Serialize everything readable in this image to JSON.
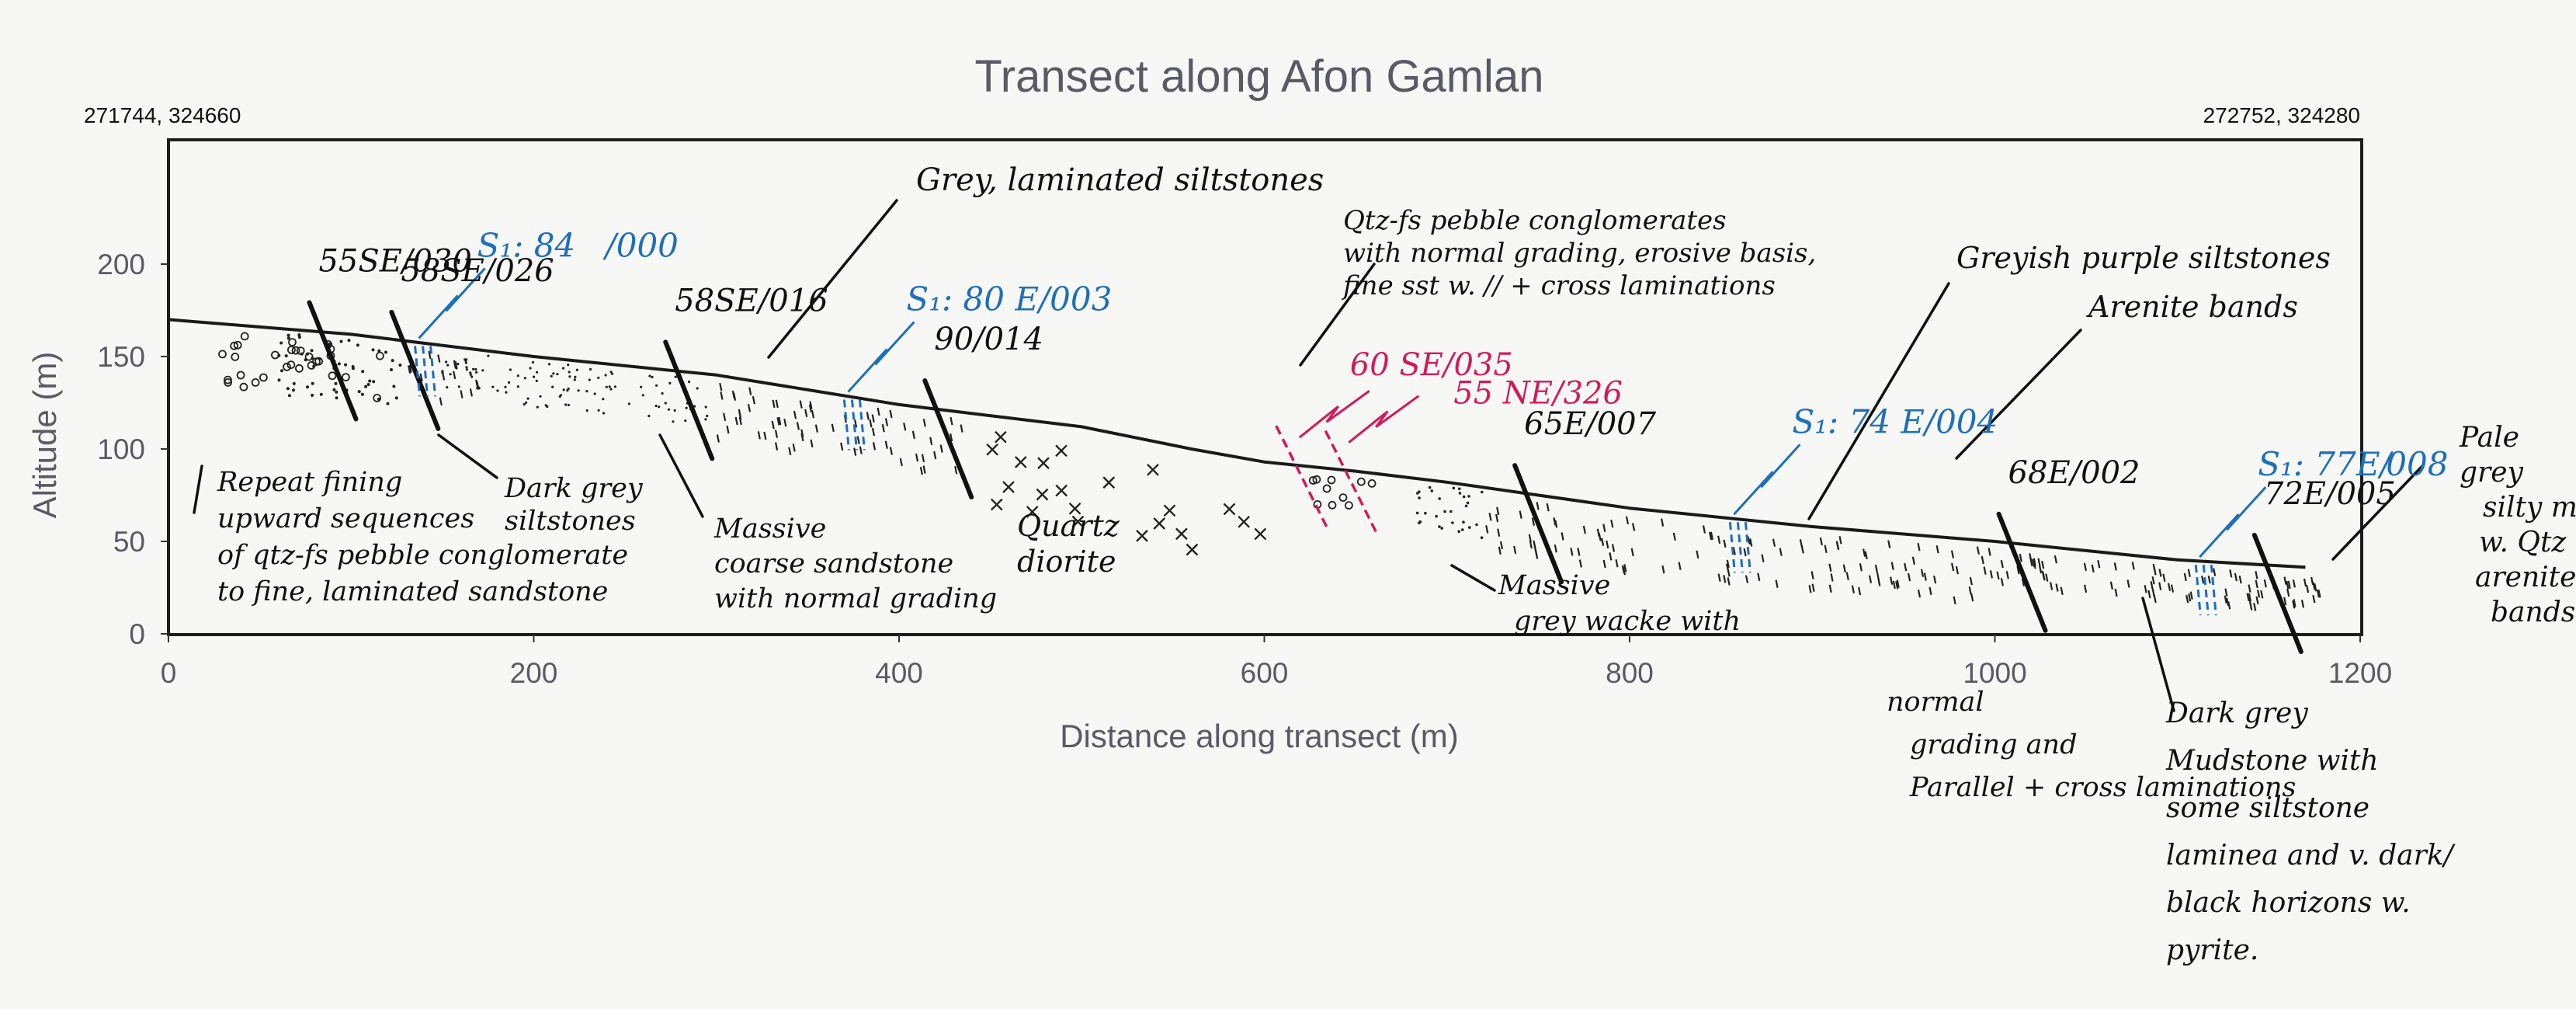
{
  "chart_data": {
    "type": "area",
    "title": "Transect along Afon Gamlan",
    "xlabel": "Distance along transect (m)",
    "ylabel": "Altitude (m)",
    "xlim": [
      0,
      1200
    ],
    "ylim": [
      0,
      270
    ],
    "xticks": [
      "0",
      "200",
      "400",
      "600",
      "800",
      "1000",
      "1200"
    ],
    "yticks": [
      "0",
      "50",
      "100",
      "150",
      "200"
    ],
    "grid": false,
    "corner_left": "271744, 324660",
    "corner_right": "272752, 324280",
    "profile": {
      "x": [
        0,
        100,
        200,
        300,
        400,
        500,
        560,
        600,
        650,
        700,
        800,
        900,
        1000,
        1100,
        1170
      ],
      "y": [
        170,
        162,
        150,
        140,
        124,
        112,
        100,
        93,
        88,
        82,
        68,
        58,
        50,
        40,
        36
      ]
    },
    "structures": [
      {
        "label": "55SE/030",
        "x": 95
      },
      {
        "label": "58SE/026",
        "x": 140
      },
      {
        "label": "58SE/016",
        "x": 290
      },
      {
        "label": "90/014",
        "x": 432
      },
      {
        "label": "65E/007",
        "x": 755
      },
      {
        "label": "68E/002",
        "x": 1020
      },
      {
        "label": "72E/005",
        "x": 1160
      }
    ],
    "cleavage": [
      {
        "label": "S₁: 84",
        "label2": "/000",
        "x": 135
      },
      {
        "label": "S₁: 80 E/003",
        "x": 370
      },
      {
        "label": "S₁: 74 E/004",
        "x": 855
      },
      {
        "label": "S₁: 77E/",
        "label2": "008",
        "x": 1110
      }
    ],
    "faults": [
      {
        "label": "60 SE/035",
        "x": 615
      },
      {
        "label": "55 NE/326",
        "x": 642
      }
    ],
    "annotations": [
      {
        "lines": [
          "Grey, laminated siltstones"
        ]
      },
      {
        "lines": [
          "Qtz-fs pebble conglomerates",
          "with normal grading, erosive basis,",
          "fine sst w. // + cross laminations"
        ]
      },
      {
        "lines": [
          "Greyish purple siltstones"
        ]
      },
      {
        "lines": [
          "Arenite bands"
        ]
      },
      {
        "lines": [
          "Repeat fining",
          "upward sequences",
          "of qtz-fs pebble conglomerate",
          "to fine, laminated sandstone"
        ]
      },
      {
        "lines": [
          "Dark grey",
          "siltstones"
        ]
      },
      {
        "lines": [
          "Massive",
          "coarse sandstone",
          "with normal grading"
        ]
      },
      {
        "lines": [
          "Quartz",
          "diorite"
        ]
      },
      {
        "lines": [
          "Massive",
          "grey wacke with",
          "normal",
          "grading and",
          "Parallel + cross laminations"
        ]
      },
      {
        "lines": [
          "Dark grey",
          "Mudstone with",
          "some siltstone",
          "laminea and v. dark/",
          "black horizons w.",
          "pyrite."
        ]
      },
      {
        "lines": [
          "Pale",
          "grey",
          "silty mudst",
          "w. Qtz",
          "arenite",
          "bands"
        ]
      }
    ]
  }
}
